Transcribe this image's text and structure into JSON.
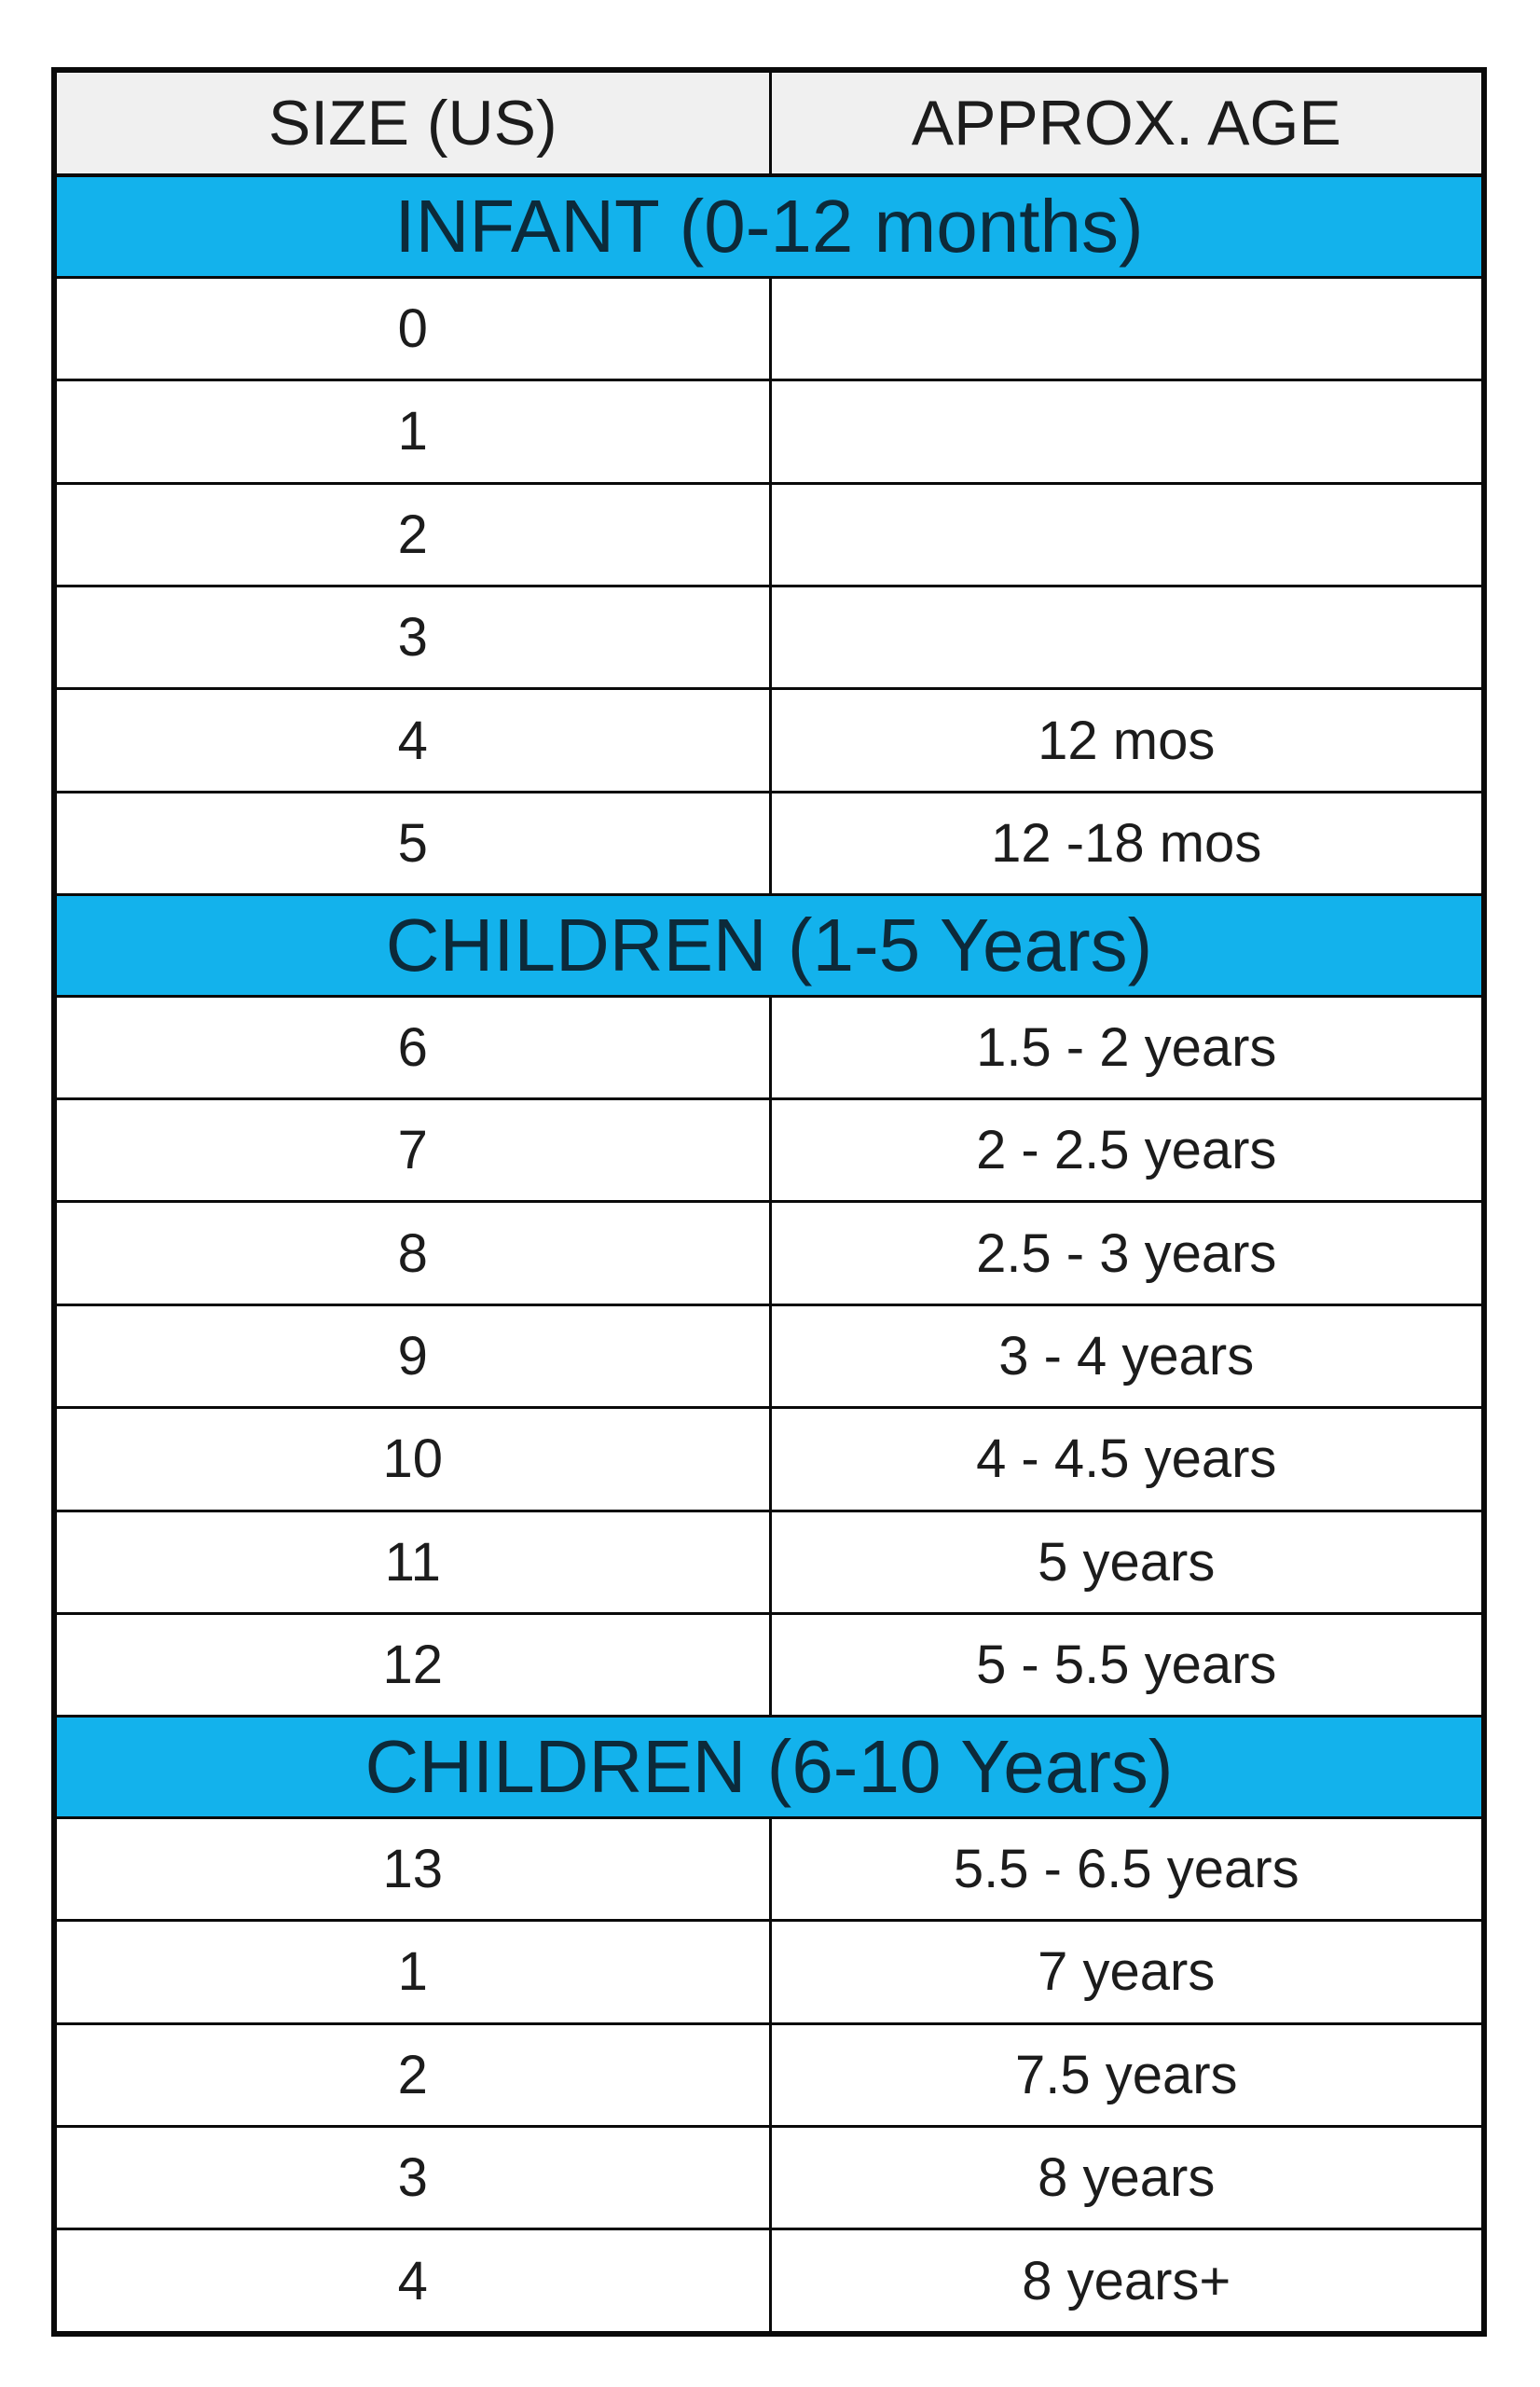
{
  "table": {
    "header": {
      "size": "SIZE (US)",
      "age": "APPROX. AGE"
    },
    "sections": [
      {
        "title": "INFANT (0-12 months)",
        "rows": [
          {
            "size": "0",
            "age": ""
          },
          {
            "size": "1",
            "age": ""
          },
          {
            "size": "2",
            "age": ""
          },
          {
            "size": "3",
            "age": ""
          },
          {
            "size": "4",
            "age": "12 mos"
          },
          {
            "size": "5",
            "age": "12 -18 mos"
          }
        ]
      },
      {
        "title": "CHILDREN (1-5 Years)",
        "rows": [
          {
            "size": "6",
            "age": "1.5 - 2 years"
          },
          {
            "size": "7",
            "age": "2 - 2.5 years"
          },
          {
            "size": "8",
            "age": "2.5 - 3 years"
          },
          {
            "size": "9",
            "age": "3 - 4 years"
          },
          {
            "size": "10",
            "age": "4 - 4.5 years"
          },
          {
            "size": "11",
            "age": "5 years"
          },
          {
            "size": "12",
            "age": "5 - 5.5 years"
          }
        ]
      },
      {
        "title": "CHILDREN (6-10 Years)",
        "rows": [
          {
            "size": "13",
            "age": "5.5 - 6.5 years"
          },
          {
            "size": "1",
            "age": "7 years"
          },
          {
            "size": "2",
            "age": "7.5 years"
          },
          {
            "size": "3",
            "age": "8 years"
          },
          {
            "size": "4",
            "age": "8 years+"
          }
        ]
      }
    ]
  },
  "colors": {
    "section_band": "#13b2ec",
    "header_band": "#f0f0f0",
    "border": "#0a0a0a"
  }
}
